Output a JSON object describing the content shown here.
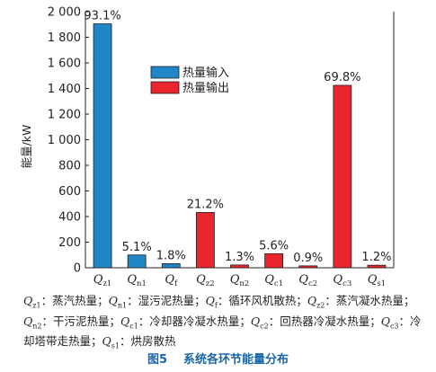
{
  "chart_data": {
    "type": "bar",
    "ylabel": "能量/kW",
    "ylim": [
      0,
      2000
    ],
    "yticks": [
      "0",
      "200",
      "400",
      "600",
      "800",
      "1 000",
      "1 200",
      "1 400",
      "1 600",
      "1 800",
      "2 000"
    ],
    "categories": [
      {
        "main": "Q",
        "sub": "z1"
      },
      {
        "main": "Q",
        "sub": "n1"
      },
      {
        "main": "Q",
        "sub": "f"
      },
      {
        "main": "Q",
        "sub": "z2"
      },
      {
        "main": "Q",
        "sub": "n2"
      },
      {
        "main": "Q",
        "sub": "c1"
      },
      {
        "main": "Q",
        "sub": "c2"
      },
      {
        "main": "Q",
        "sub": "c3"
      },
      {
        "main": "Q",
        "sub": "s1"
      }
    ],
    "values": [
      1905,
      100,
      32,
      432,
      22,
      110,
      15,
      1425,
      20
    ],
    "series_index": [
      0,
      0,
      0,
      1,
      1,
      1,
      1,
      1,
      1
    ],
    "data_labels": [
      "93.1%",
      "5.1%",
      "1.8%",
      "21.2%",
      "1.3%",
      "5.6%",
      "0.9%",
      "69.8%",
      "1.2%"
    ],
    "series": [
      {
        "name": "热量输入",
        "color": "#1f86c8"
      },
      {
        "name": "热量输出",
        "color": "#e8262c"
      }
    ],
    "legend_position": "top-center",
    "grid": false
  },
  "caption": {
    "items": [
      {
        "sym": "Q",
        "sub": "z1",
        "text": "：蒸汽热量；"
      },
      {
        "sym": "Q",
        "sub": "n1",
        "text": "：湿污泥热量；"
      },
      {
        "sym": "Q",
        "sub": "f",
        "text": "：循环风机散热；"
      },
      {
        "sym": "Q",
        "sub": "z2",
        "text": "：蒸汽凝水热量；"
      },
      {
        "sym": "Q",
        "sub": "n2",
        "text": "：干污泥热量；"
      },
      {
        "sym": "Q",
        "sub": "c1",
        "text": "：冷却器冷凝水热量；"
      },
      {
        "sym": "Q",
        "sub": "c2",
        "text": "：回热器冷凝水热量；"
      },
      {
        "sym": "Q",
        "sub": "c3",
        "text": "：冷却塔带走热量；"
      },
      {
        "sym": "Q",
        "sub": "s1",
        "text": "：烘房散热"
      }
    ]
  },
  "figure": {
    "number": "图5",
    "title": "系统各环节能量分布"
  }
}
